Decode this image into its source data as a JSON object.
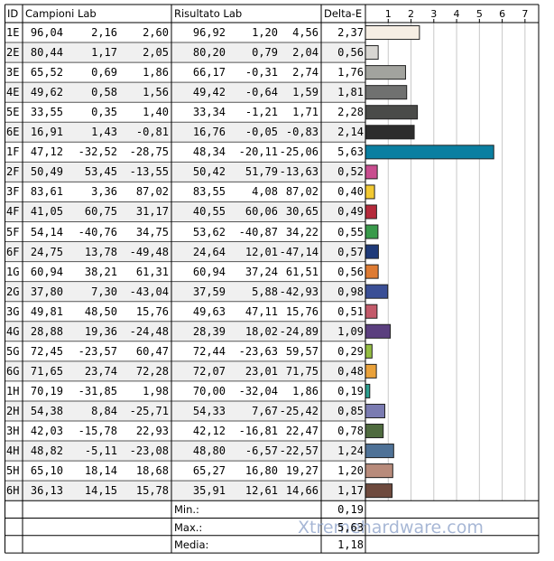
{
  "table": {
    "headers": [
      "ID",
      "Campioni Lab",
      "Risultato Lab",
      "Delta-E"
    ],
    "rows": [
      [
        "1E",
        "96,04",
        "2,16",
        "2,60",
        "96,92",
        "1,20",
        "4,56"
      ],
      [
        "2E",
        "80,44",
        "1,17",
        "2,05",
        "80,20",
        "0,79",
        "2,04"
      ],
      [
        "3E",
        "65,52",
        "0,69",
        "1,86",
        "66,17",
        "-0,31",
        "2,74"
      ],
      [
        "4E",
        "49,62",
        "0,58",
        "1,56",
        "49,42",
        "-0,64",
        "1,59"
      ],
      [
        "5E",
        "33,55",
        "0,35",
        "1,40",
        "33,34",
        "-1,21",
        "1,71"
      ],
      [
        "6E",
        "16,91",
        "1,43",
        "-0,81",
        "16,76",
        "-0,05",
        "-0,83"
      ],
      [
        "1F",
        "47,12",
        "-32,52",
        "-28,75",
        "48,34",
        "-20,11",
        "-25,06"
      ],
      [
        "2F",
        "50,49",
        "53,45",
        "-13,55",
        "50,42",
        "51,79",
        "-13,63"
      ],
      [
        "3F",
        "83,61",
        "3,36",
        "87,02",
        "83,55",
        "4,08",
        "87,02"
      ],
      [
        "4F",
        "41,05",
        "60,75",
        "31,17",
        "40,55",
        "60,06",
        "30,65"
      ],
      [
        "5F",
        "54,14",
        "-40,76",
        "34,75",
        "53,62",
        "-40,87",
        "34,22"
      ],
      [
        "6F",
        "24,75",
        "13,78",
        "-49,48",
        "24,64",
        "12,01",
        "-47,14"
      ],
      [
        "1G",
        "60,94",
        "38,21",
        "61,31",
        "60,94",
        "37,24",
        "61,51"
      ],
      [
        "2G",
        "37,80",
        "7,30",
        "-43,04",
        "37,59",
        "5,88",
        "-42,93"
      ],
      [
        "3G",
        "49,81",
        "48,50",
        "15,76",
        "49,63",
        "47,11",
        "15,76"
      ],
      [
        "4G",
        "28,88",
        "19,36",
        "-24,48",
        "28,39",
        "18,02",
        "-24,89"
      ],
      [
        "5G",
        "72,45",
        "-23,57",
        "60,47",
        "72,44",
        "-23,63",
        "59,57"
      ],
      [
        "6G",
        "71,65",
        "23,74",
        "72,28",
        "72,07",
        "23,01",
        "71,75"
      ],
      [
        "1H",
        "70,19",
        "-31,85",
        "1,98",
        "70,00",
        "-32,04",
        "1,86"
      ],
      [
        "2H",
        "54,38",
        "8,84",
        "-25,71",
        "54,33",
        "7,67",
        "-25,42"
      ],
      [
        "3H",
        "42,03",
        "-15,78",
        "22,93",
        "42,12",
        "-16,81",
        "22,47"
      ],
      [
        "4H",
        "48,82",
        "-5,11",
        "-23,08",
        "48,80",
        "-6,57",
        "-22,57"
      ],
      [
        "5H",
        "65,10",
        "18,14",
        "18,68",
        "65,27",
        "16,80",
        "19,27"
      ],
      [
        "6H",
        "36,13",
        "14,15",
        "15,78",
        "35,91",
        "12,61",
        "14,66"
      ]
    ],
    "summary": [
      {
        "label": "Min.:",
        "value": "0,19"
      },
      {
        "label": "Max.:",
        "value": "5,63"
      },
      {
        "label": "Media:",
        "value": "1,18"
      }
    ]
  },
  "chart_data": {
    "type": "bar",
    "values": [
      2.37,
      0.56,
      1.76,
      1.81,
      2.28,
      2.14,
      5.63,
      0.52,
      0.4,
      0.49,
      0.55,
      0.57,
      0.56,
      0.98,
      0.51,
      1.09,
      0.29,
      0.48,
      0.19,
      0.85,
      0.78,
      1.24,
      1.2,
      1.17
    ],
    "value_labels": [
      "2,37",
      "0,56",
      "1,76",
      "1,81",
      "2,28",
      "2,14",
      "5,63",
      "0,52",
      "0,40",
      "0,49",
      "0,55",
      "0,57",
      "0,56",
      "0,98",
      "0,51",
      "1,09",
      "0,29",
      "0,48",
      "0,19",
      "0,85",
      "0,78",
      "1,24",
      "1,20",
      "1,17"
    ],
    "colors": [
      "#f6eee4",
      "#d8d6d2",
      "#a2a39e",
      "#707170",
      "#4a4b49",
      "#2d2d2d",
      "#0a7fa1",
      "#c94d8f",
      "#f2c932",
      "#b52a3b",
      "#399a4b",
      "#1f3a79",
      "#de7b33",
      "#3a4f96",
      "#c35a6a",
      "#5b3f7f",
      "#95be41",
      "#e9a13a",
      "#2ba090",
      "#7a7bb1",
      "#4f6b3f",
      "#4f7297",
      "#b88b7b",
      "#6e4a3e"
    ],
    "xlim": [
      0,
      7.6
    ],
    "xticks": [
      1,
      2,
      3,
      4,
      5,
      6,
      7
    ],
    "grid": true
  },
  "watermark": "Xtremehardware.com"
}
